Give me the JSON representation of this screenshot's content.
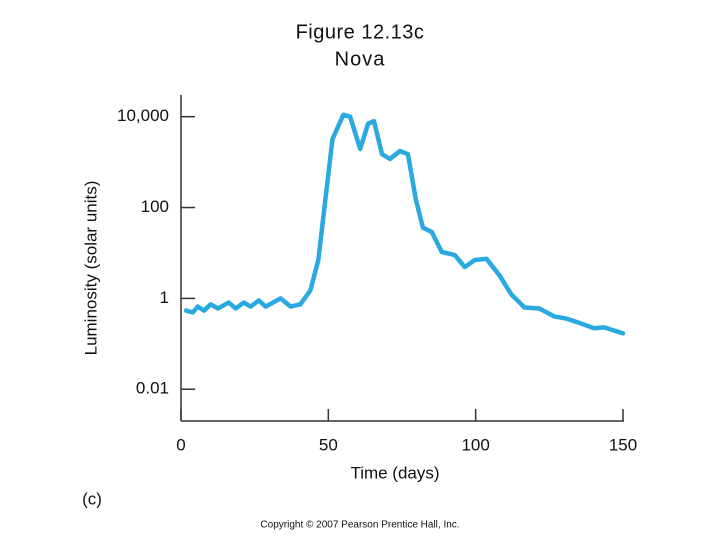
{
  "chart_data": {
    "type": "line",
    "title": "Figure 12.13c",
    "subtitle": "Nova",
    "xlabel": "Time (days)",
    "ylabel": "Luminosity (solar units)",
    "panel_label": "(c)",
    "credit": "Copyright © 2007 Pearson Prentice Hall, Inc.",
    "log_y": true,
    "xlim": [
      0,
      150
    ],
    "xticks": [
      0,
      50,
      100,
      150
    ],
    "ylim": [
      0.002,
      30000
    ],
    "yticks": [
      {
        "value": 10000,
        "label": "10,000"
      },
      100,
      1,
      0.01
    ],
    "series": [
      {
        "color": "#2aa9e0",
        "x": [
          1.7,
          4,
          5.7,
          7.8,
          10.1,
          12.5,
          16.2,
          18.6,
          21.3,
          23.6,
          26.4,
          28.7,
          33.8,
          37.2,
          40.5,
          43.9,
          46.6,
          49,
          51.4,
          55.1,
          57.4,
          60.8,
          63.5,
          65.5,
          68.2,
          70.9,
          74.3,
          77,
          79.7,
          82.1,
          85.1,
          88.5,
          92.9,
          96.3,
          99.7,
          103.7,
          108.1,
          112.2,
          116.6,
          121.6,
          126.7,
          130.7,
          135.1,
          140.2,
          143.6,
          150
        ],
        "values": [
          0.54,
          0.49,
          0.66,
          0.54,
          0.74,
          0.6,
          0.81,
          0.6,
          0.81,
          0.66,
          0.9,
          0.66,
          1,
          0.66,
          0.74,
          1.5,
          7,
          150,
          3200,
          11000,
          10000,
          1950,
          7000,
          8000,
          1500,
          1170,
          1750,
          1500,
          150,
          36,
          29,
          10.5,
          9,
          4.9,
          7,
          7.4,
          3.2,
          1.2,
          0.63,
          0.6,
          0.4,
          0.36,
          0.29,
          0.22,
          0.23,
          0.17
        ]
      }
    ]
  }
}
